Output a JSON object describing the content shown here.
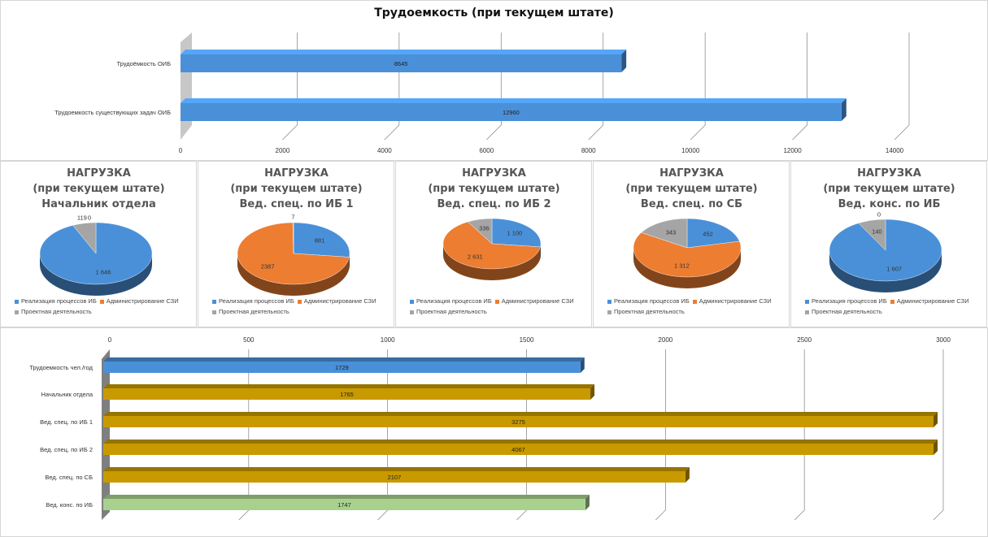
{
  "chart_data": [
    {
      "type": "bar",
      "title": "Трудоемкость (при текущем штате)",
      "categories": [
        "Трудоёмкость ОИБ",
        "Трудоемкость существующих задач ОИБ"
      ],
      "values": [
        8645,
        12960
      ],
      "colors": [
        "#4a90d9",
        "#4a90d9"
      ],
      "xlim": [
        0,
        14000
      ],
      "ticks": [
        "0",
        "2000",
        "4000",
        "6000",
        "8000",
        "10000",
        "12000",
        "14000"
      ],
      "value_labels": [
        "8645",
        "12960"
      ]
    },
    {
      "type": "pie",
      "title": [
        "НАГРУЗКА",
        "(при текущем штате)",
        "Начальник отдела"
      ],
      "slices": [
        {
          "name": "Реализация процессов ИБ",
          "value": 1646,
          "label": "1 646"
        },
        {
          "name": "Администрирование СЗИ",
          "value": 0,
          "label": "0"
        },
        {
          "name": "Проектная деятельность",
          "value": 119,
          "label": "119"
        }
      ]
    },
    {
      "type": "pie",
      "title": [
        "НАГРУЗКА",
        "(при текущем штате)",
        "Вед. спец. по ИБ 1"
      ],
      "slices": [
        {
          "name": "Реализация процессов ИБ",
          "value": 881,
          "label": "881"
        },
        {
          "name": "Администрирование СЗИ",
          "value": 2387,
          "label": "2387"
        },
        {
          "name": "Проектная деятельность",
          "value": 7,
          "label": "7"
        }
      ]
    },
    {
      "type": "pie",
      "title": [
        "НАГРУЗКА",
        "(при текущем штате)",
        "Вед. спец. по ИБ 2"
      ],
      "slices": [
        {
          "name": "Реализация процессов ИБ",
          "value": 1100,
          "label": "1 100"
        },
        {
          "name": "Администрирование СЗИ",
          "value": 2631,
          "label": "2 631"
        },
        {
          "name": "Проектная деятельность",
          "value": 336,
          "label": "336"
        }
      ]
    },
    {
      "type": "pie",
      "title": [
        "НАГРУЗКА",
        "(при текущем штате)",
        "Вед. спец. по СБ"
      ],
      "slices": [
        {
          "name": "Реализация процессов ИБ",
          "value": 452,
          "label": "452"
        },
        {
          "name": "Администрирование СЗИ",
          "value": 1312,
          "label": "1 312"
        },
        {
          "name": "Проектная деятельность",
          "value": 343,
          "label": "343"
        }
      ]
    },
    {
      "type": "pie",
      "title": [
        "НАГРУЗКА",
        "(при текущем штате)",
        "Вед. конс. по ИБ"
      ],
      "slices": [
        {
          "name": "Реализация процессов ИБ",
          "value": 1607,
          "label": "1 607"
        },
        {
          "name": "Администрирование СЗИ",
          "value": 0,
          "label": "0"
        },
        {
          "name": "Проектная деятельность",
          "value": 140,
          "label": "140"
        }
      ]
    },
    {
      "type": "bar",
      "title": "",
      "categories": [
        "Трудоемкость чел./год",
        "Начальник отдела",
        "Вед. спец. по ИБ 1",
        "Вед. спец. по ИБ 2",
        "Вед. спец. по СБ",
        "Вед. конс. по ИБ"
      ],
      "values": [
        1729,
        1765,
        3275,
        4067,
        2107,
        1747
      ],
      "value_labels": [
        "1729",
        "1765",
        "3275",
        "4067",
        "2107",
        "1747"
      ],
      "colors": [
        "#4a90d9",
        "#c89a00",
        "#c89a00",
        "#c89a00",
        "#c89a00",
        "#a9d18e"
      ],
      "xlim": [
        0,
        3000
      ],
      "ticks": [
        "0",
        "500",
        "1000",
        "1500",
        "2000",
        "2500",
        "3000"
      ]
    }
  ],
  "legend": {
    "items": [
      "Реализация процессов ИБ",
      "Администрирование СЗИ",
      "Проектная деятельность"
    ],
    "colors": [
      "#4a90d9",
      "#ed7d31",
      "#a5a5a5"
    ]
  }
}
